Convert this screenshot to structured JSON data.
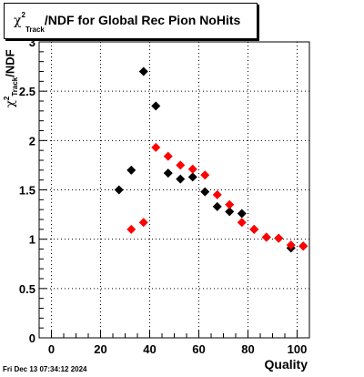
{
  "chart_data": {
    "type": "scatter",
    "title": "/NDF for Global Rec Pion NoHits",
    "title_symbol": "χ",
    "title_sup": "2",
    "title_sub": "Track",
    "xlabel": "Quality",
    "ylabel": "/NDF",
    "ylabel_symbol": "χ",
    "ylabel_sup": "2",
    "ylabel_sub": "Track",
    "xlim": [
      -5,
      105
    ],
    "ylim": [
      0,
      3
    ],
    "xticks": [
      0,
      20,
      40,
      60,
      80,
      100
    ],
    "yticks": [
      0,
      0.5,
      1,
      1.5,
      2,
      2.5,
      3
    ],
    "ytick_labels": [
      "0",
      "0.5",
      "1",
      "1.5",
      "2",
      "2.5",
      "3"
    ],
    "grid": true,
    "series": [
      {
        "color": "#000000",
        "marker": "diamond",
        "x": [
          27.5,
          32.5,
          37.5,
          42.5,
          47.5,
          52.5,
          57.5,
          62.5,
          67.5,
          72.5,
          77.5,
          82.5,
          87.5,
          92.5,
          97.5,
          102.5
        ],
        "y": [
          1.5,
          1.7,
          2.7,
          2.35,
          1.67,
          1.61,
          1.63,
          1.48,
          1.33,
          1.28,
          1.26,
          1.1,
          1.02,
          1.01,
          0.91,
          0.93
        ]
      },
      {
        "color": "#ff0000",
        "marker": "diamond",
        "x": [
          32.5,
          37.5,
          42.5,
          47.5,
          52.5,
          57.5,
          62.5,
          67.5,
          72.5,
          77.5,
          82.5,
          87.5,
          92.5,
          97.5,
          102.5
        ],
        "y": [
          1.1,
          1.17,
          1.93,
          1.84,
          1.75,
          1.71,
          1.65,
          1.45,
          1.35,
          1.17,
          1.1,
          1.02,
          1.01,
          0.94,
          0.93
        ]
      }
    ]
  },
  "footer": "Fri Dec 13 07:34:12 2024"
}
